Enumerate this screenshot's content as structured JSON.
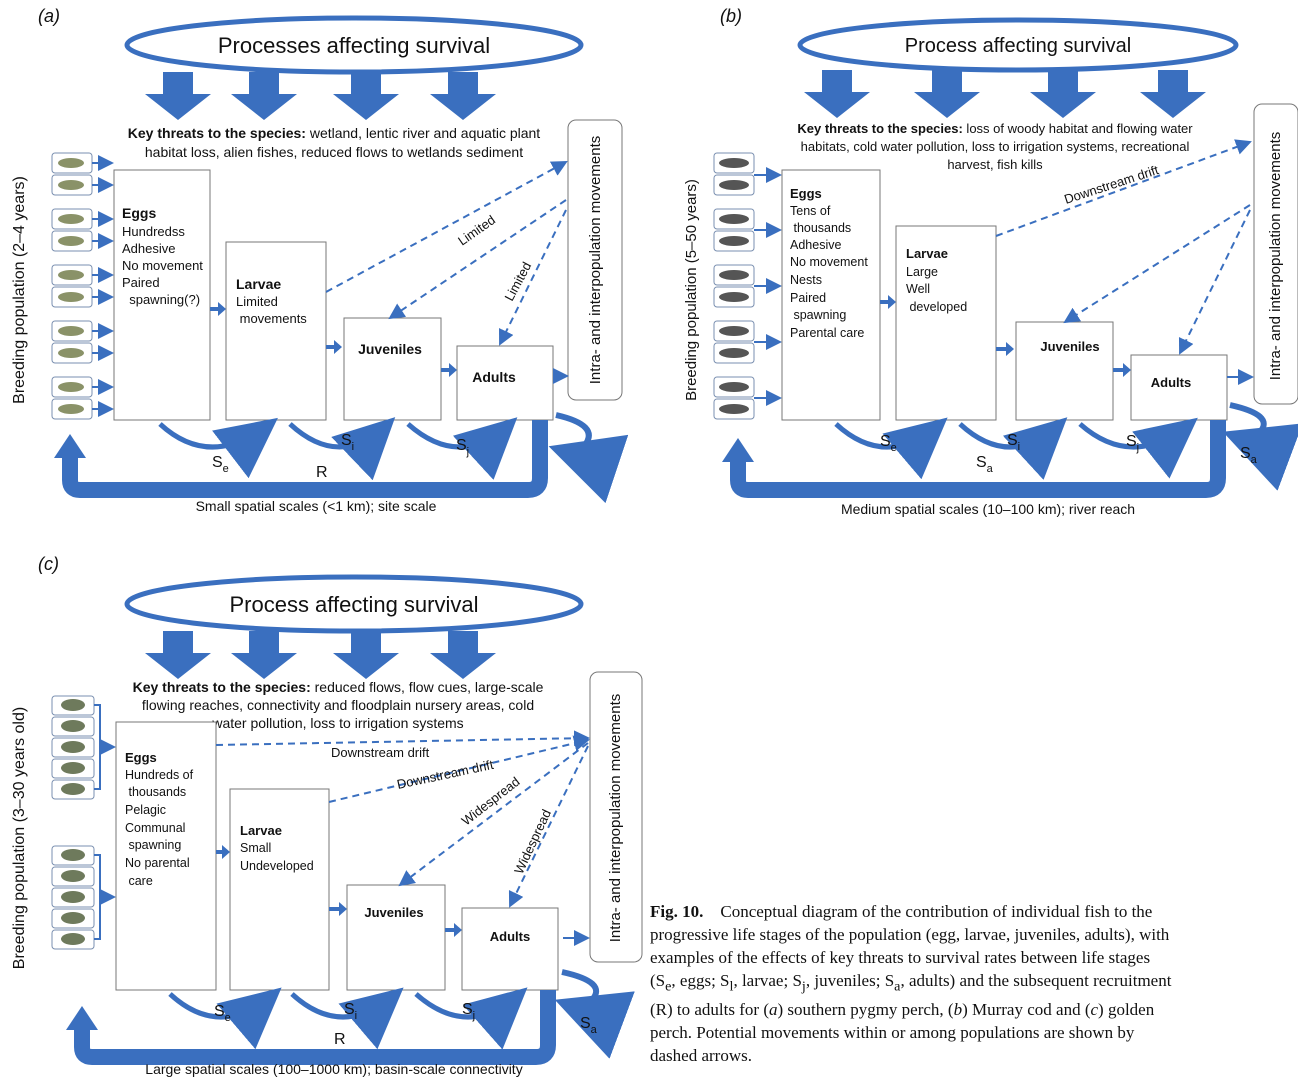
{
  "panel_a": {
    "label": "(a)",
    "process": "Processes affecting survival",
    "threats_bold": "Key threats to the species:",
    "threats_lines": [
      " wetland, lentic river and aquatic plant",
      "habitat loss, alien fishes, reduced flows to wetlands sediment"
    ],
    "breeding": "Breeding population (2–4 years)",
    "eggs_title": "Eggs",
    "eggs_lines": [
      "Hundredss",
      "Adhesive",
      "No movement",
      "Paired",
      "  spawning(?)"
    ],
    "larvae_title": "Larvae",
    "larvae_lines": [
      "Limited",
      " movements"
    ],
    "juveniles": "Juveniles",
    "adults": "Adults",
    "movements": "Intra- and interpopulation movements",
    "dashed_labels": [
      "Limited",
      "Limited"
    ],
    "survival": [
      "S",
      "e",
      "S",
      "i",
      "S",
      "j"
    ],
    "recruit": "R",
    "scale": "Small spatial scales (<1 km); site scale"
  },
  "panel_b": {
    "label": "(b)",
    "process": "Process affecting survival",
    "threats_bold": "Key threats to the species:",
    "threats_lines": [
      " loss of woody habitat and flowing water",
      "habitats, cold water pollution, loss to irrigation systems, recreational",
      "harvest, fish kills"
    ],
    "breeding": "Breeding population (5–50 years)",
    "eggs_title": "Eggs",
    "eggs_lines": [
      "Tens of",
      " thousands",
      "Adhesive",
      "No movement",
      "Nests",
      "Paired",
      " spawning",
      "Parental care"
    ],
    "larvae_title": "Larvae",
    "larvae_lines": [
      "Large",
      "Well",
      " developed"
    ],
    "juveniles": "Juveniles",
    "adults": "Adults",
    "movements": "Intra- and interpopulation movements",
    "dashed_labels": [
      "Downstream drift"
    ],
    "survival": [
      "S",
      "e",
      "S",
      "i",
      "S",
      "j",
      "S",
      "a",
      "S",
      "a"
    ],
    "scale": "Medium spatial scales (10–100 km); river reach"
  },
  "panel_c": {
    "label": "(c)",
    "process": "Process affecting survival",
    "threats_bold": "Key threats to the species:",
    "threats_lines": [
      " reduced flows, flow cues, large-scale",
      "flowing reaches, connectivity and floodplain nursery areas, cold",
      "water pollution, loss to irrigation systems"
    ],
    "breeding": "Breeding population (3–30 years old)",
    "eggs_title": "Eggs",
    "eggs_lines": [
      "Hundreds of",
      " thousands",
      "Pelagic",
      "Communal",
      " spawning",
      "No parental",
      " care"
    ],
    "larvae_title": "Larvae",
    "larvae_lines": [
      "Small",
      "Undeveloped"
    ],
    "juveniles": "Juveniles",
    "adults": "Adults",
    "movements": "Intra- and interpopulation movements",
    "dashed_labels": [
      "Downstream drift",
      "Downstream drift",
      "Widespread",
      "Widespread"
    ],
    "survival": [
      "S",
      "e",
      "S",
      "i",
      "S",
      "j",
      "S",
      "a"
    ],
    "recruit": "R",
    "scale": "Large spatial scales (100–1000 km); basin-scale connectivity"
  },
  "caption": {
    "fig": "Fig. 10.",
    "line1": "Conceptual diagram of the contribution of individual fish to the",
    "line2": "progressive life stages of the population (egg, larvae, juveniles, adults), with",
    "line3": "examples of the effects of key threats to survival rates between life stages",
    "line4a": "(S",
    "line4b": "e",
    "line4c": ", eggs; S",
    "line4d": "l",
    "line4e": ", larvae; S",
    "line4f": "j",
    "line4g": ", juveniles; S",
    "line4h": "a",
    "line4i": ", adults) and the subsequent recruitment",
    "line5a": "(R) to adults for (",
    "line5b": "a",
    "line5c": ") southern pygmy perch, (",
    "line5d": "b",
    "line5e": ") Murray cod and (",
    "line5f": "c",
    "line5g": ") golden",
    "line6": "perch. Potential movements within or among populations are shown by",
    "line7": "dashed arrows."
  },
  "colors": {
    "arrow": "#3a6fbf",
    "box_border": "#777777"
  }
}
